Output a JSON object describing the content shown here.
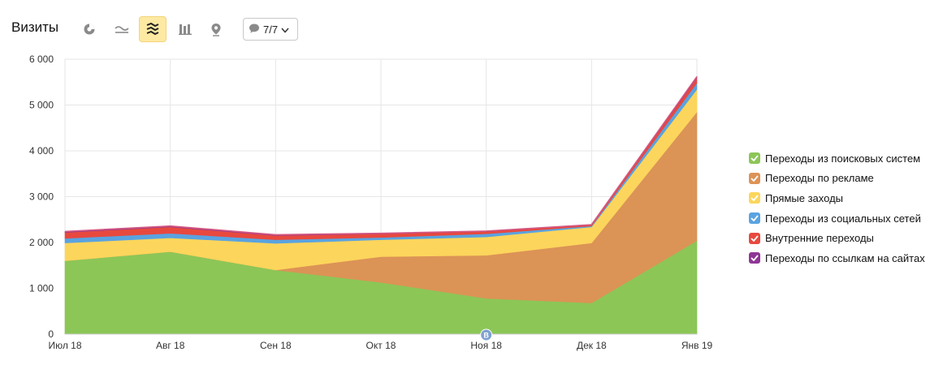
{
  "header": {
    "title": "Визиты",
    "filter_label": "7/7"
  },
  "icons": {
    "view_pie": "pie-chart-icon",
    "view_line": "line-chart-icon",
    "view_area": "area-chart-icon",
    "view_bar": "bar-chart-icon",
    "view_map": "map-pin-icon",
    "filter": "speech-bubble-icon",
    "dropdown": "chevron-down-icon"
  },
  "marker_label": "В",
  "chart_data": {
    "type": "area",
    "stacked": true,
    "categories": [
      "Июл 18",
      "Авг 18",
      "Сен 18",
      "Окт 18",
      "Ноя 18",
      "Дек 18",
      "Янв 19"
    ],
    "ylim": [
      0,
      6000
    ],
    "yticks": [
      "0",
      "1 000",
      "2 000",
      "3 000",
      "4 000",
      "5 000",
      "6 000"
    ],
    "ytick_values": [
      0,
      1000,
      2000,
      3000,
      4000,
      5000,
      6000
    ],
    "grid": true,
    "legend_position": "right",
    "series": [
      {
        "name": "Переходы из поисковых систем",
        "color": "#8cc657",
        "values": [
          1600,
          1800,
          1400,
          1130,
          780,
          680,
          2040
        ]
      },
      {
        "name": "Переходы по рекламе",
        "color": "#dc9356",
        "values": [
          0,
          0,
          0,
          560,
          940,
          1310,
          2810
        ]
      },
      {
        "name": "Прямые заходы",
        "color": "#fcd55c",
        "values": [
          390,
          300,
          580,
          370,
          400,
          350,
          490
        ]
      },
      {
        "name": "Переходы из социальных сетей",
        "color": "#5aa3e0",
        "values": [
          100,
          100,
          80,
          50,
          70,
          20,
          140
        ]
      },
      {
        "name": "Внутренние переходы",
        "color": "#e8493e",
        "values": [
          130,
          140,
          90,
          80,
          50,
          20,
          110
        ]
      },
      {
        "name": "Переходы по ссылкам на сайтах",
        "color": "#8e3796",
        "values": [
          20,
          20,
          20,
          10,
          10,
          10,
          30
        ]
      }
    ]
  }
}
